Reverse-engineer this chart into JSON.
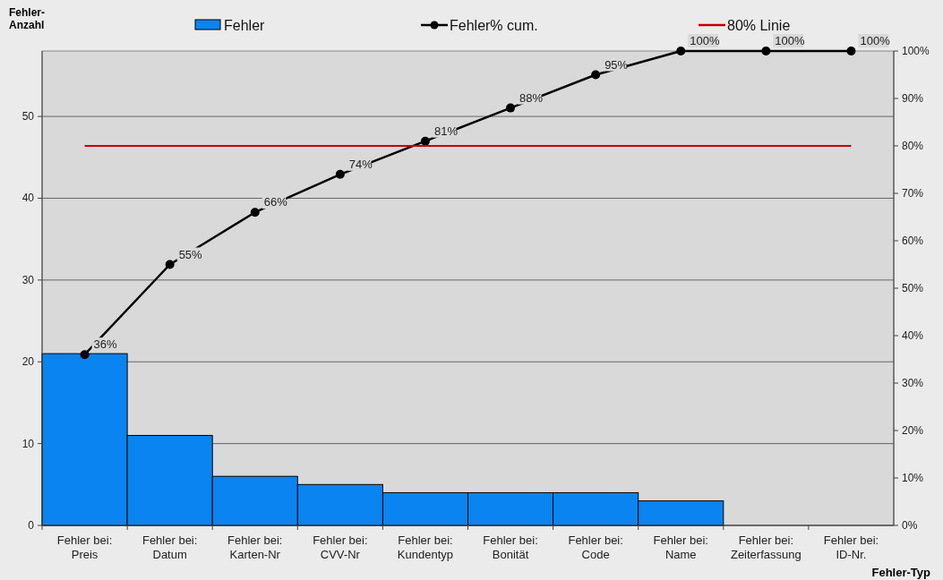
{
  "chart_data": {
    "type": "bar",
    "xlabel": "Fehler-Typ",
    "ylabel": "Fehler-Anzahl",
    "categories": [
      "Fehler bei: Preis",
      "Fehler bei: Datum",
      "Fehler bei: Karten-Nr",
      "Fehler bei: CVV-Nr",
      "Fehler bei: Kundentyp",
      "Fehler bei: Bonität",
      "Fehler bei: Code",
      "Fehler bei: Name",
      "Fehler bei: Zeiterfassung",
      "Fehler bei: ID-Nr."
    ],
    "series": [
      {
        "name": "Fehler",
        "color": "#0a84f0",
        "values": [
          21,
          11,
          6,
          5,
          4,
          4,
          4,
          3,
          0,
          0
        ]
      },
      {
        "name": "Fehler% cum.",
        "type": "line",
        "axis": "y2",
        "color": "#000000",
        "values": [
          36,
          55,
          66,
          74,
          81,
          88,
          95,
          100,
          100,
          100
        ],
        "value_labels": [
          "36%",
          "55%",
          "66%",
          "74%",
          "81%",
          "88%",
          "95%",
          "100%",
          "100%",
          "100%"
        ]
      }
    ],
    "ylim": [
      0,
      58
    ],
    "yticks": [
      0,
      10,
      20,
      30,
      40,
      50
    ],
    "y2lim": [
      0,
      100
    ],
    "y2ticks": [
      {
        "value": 0,
        "label": "0%"
      },
      {
        "value": 10,
        "label": "10%"
      },
      {
        "value": 20,
        "label": "20%"
      },
      {
        "value": 30,
        "label": "30%"
      },
      {
        "value": 40,
        "label": "40%"
      },
      {
        "value": 50,
        "label": "50%"
      },
      {
        "value": 60,
        "label": "60%"
      },
      {
        "value": 70,
        "label": "70%"
      },
      {
        "value": 80,
        "label": "80%"
      },
      {
        "value": 90,
        "label": "90%"
      },
      {
        "value": 100,
        "label": "100%"
      }
    ],
    "ref_lines": [
      {
        "axis": "y2",
        "value": 80,
        "label": "80% Linie",
        "color": "#c00000"
      }
    ],
    "grid": "y",
    "legend": "top",
    "marker": "circle",
    "line_style": "solid"
  }
}
